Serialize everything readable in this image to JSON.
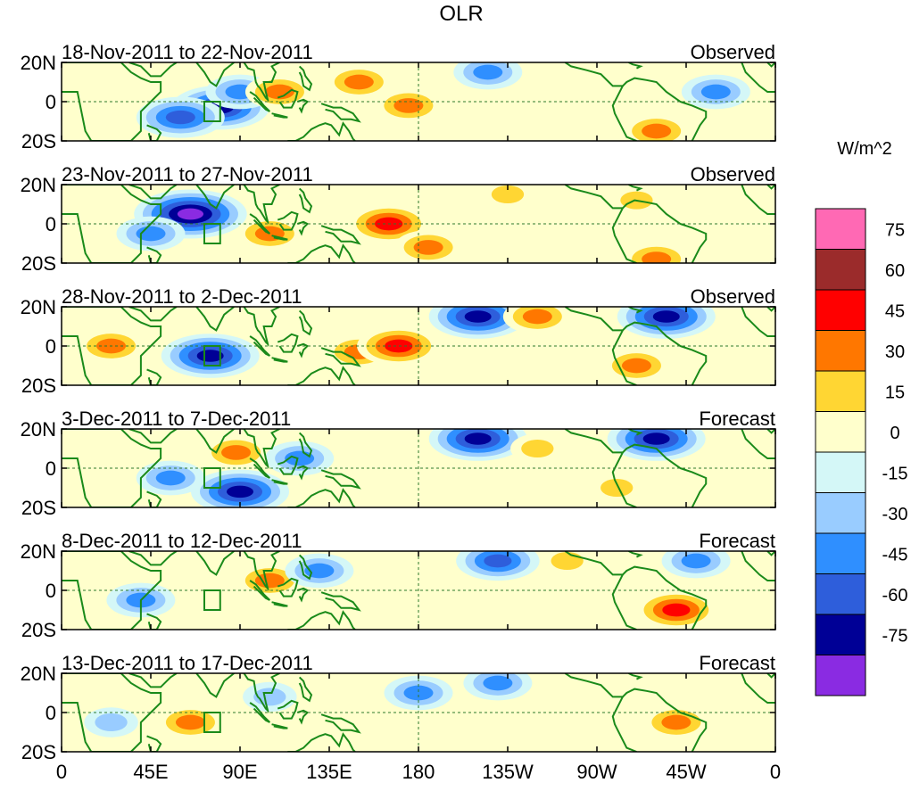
{
  "chart_data": {
    "type": "heatmap",
    "title": "OLR",
    "units_label": "W/m^2",
    "lat_tick_labels": [
      "20N",
      "0",
      "20S"
    ],
    "lon_tick_labels": [
      "0",
      "45E",
      "90E",
      "135E",
      "180",
      "135W",
      "90W",
      "45W",
      "0"
    ],
    "lon_range": [
      0,
      360
    ],
    "lat_range": [
      -20,
      20
    ],
    "colorbar": {
      "levels": [
        "75",
        "60",
        "45",
        "30",
        "15",
        "0",
        "-15",
        "-30",
        "-45",
        "-60",
        "-75"
      ],
      "colors": [
        "#ff69b4",
        "#9b2b2b",
        "#ff0000",
        "#ff7700",
        "#ffd633",
        "#ffffcc",
        "#d4f7f7",
        "#99ccff",
        "#2f8fff",
        "#2e5edb",
        "#000096",
        "#8a2be2"
      ]
    },
    "panels": [
      {
        "period": "18-Nov-2011 to 22-Nov-2011",
        "kind": "Observed",
        "anomalies": [
          {
            "lon": 80,
            "lat": -3,
            "value": -60
          },
          {
            "lon": 60,
            "lat": -8,
            "value": -50
          },
          {
            "lon": 90,
            "lat": 5,
            "value": -30
          },
          {
            "lon": 110,
            "lat": 5,
            "value": 30
          },
          {
            "lon": 150,
            "lat": 10,
            "value": 30
          },
          {
            "lon": 175,
            "lat": -2,
            "value": 30
          },
          {
            "lon": 215,
            "lat": 15,
            "value": -30
          },
          {
            "lon": 300,
            "lat": -15,
            "value": 30
          },
          {
            "lon": 330,
            "lat": 5,
            "value": -30
          }
        ]
      },
      {
        "period": "23-Nov-2011 to 27-Nov-2011",
        "kind": "Observed",
        "anomalies": [
          {
            "lon": 65,
            "lat": 5,
            "value": -75
          },
          {
            "lon": 45,
            "lat": -5,
            "value": -30
          },
          {
            "lon": 105,
            "lat": -5,
            "value": 30
          },
          {
            "lon": 165,
            "lat": 0,
            "value": 45
          },
          {
            "lon": 185,
            "lat": -12,
            "value": 30
          },
          {
            "lon": 225,
            "lat": 15,
            "value": 15
          },
          {
            "lon": 300,
            "lat": -18,
            "value": 30
          },
          {
            "lon": 290,
            "lat": 12,
            "value": 15
          }
        ]
      },
      {
        "period": "28-Nov-2011 to 2-Dec-2011",
        "kind": "Observed",
        "anomalies": [
          {
            "lon": 75,
            "lat": -5,
            "value": -60
          },
          {
            "lon": 25,
            "lat": 0,
            "value": 30
          },
          {
            "lon": 150,
            "lat": -3,
            "value": 30
          },
          {
            "lon": 170,
            "lat": 0,
            "value": 45
          },
          {
            "lon": 210,
            "lat": 15,
            "value": -60
          },
          {
            "lon": 240,
            "lat": 15,
            "value": 30
          },
          {
            "lon": 305,
            "lat": 15,
            "value": -60
          },
          {
            "lon": 290,
            "lat": -10,
            "value": 30
          }
        ]
      },
      {
        "period": "3-Dec-2011 to 7-Dec-2011",
        "kind": "Forecast",
        "anomalies": [
          {
            "lon": 88,
            "lat": 8,
            "value": 30
          },
          {
            "lon": 90,
            "lat": -12,
            "value": -60
          },
          {
            "lon": 55,
            "lat": -5,
            "value": -30
          },
          {
            "lon": 120,
            "lat": 5,
            "value": -30
          },
          {
            "lon": 210,
            "lat": 15,
            "value": -60
          },
          {
            "lon": 240,
            "lat": 10,
            "value": 15
          },
          {
            "lon": 300,
            "lat": 15,
            "value": -60
          },
          {
            "lon": 280,
            "lat": -10,
            "value": 15
          }
        ]
      },
      {
        "period": "8-Dec-2011 to 12-Dec-2011",
        "kind": "Forecast",
        "anomalies": [
          {
            "lon": 105,
            "lat": 5,
            "value": 30
          },
          {
            "lon": 130,
            "lat": 10,
            "value": -30
          },
          {
            "lon": 220,
            "lat": 15,
            "value": -45
          },
          {
            "lon": 255,
            "lat": 15,
            "value": 15
          },
          {
            "lon": 310,
            "lat": -10,
            "value": 45
          },
          {
            "lon": 320,
            "lat": 15,
            "value": -30
          },
          {
            "lon": 40,
            "lat": -5,
            "value": -30
          }
        ]
      },
      {
        "period": "13-Dec-2011 to 17-Dec-2011",
        "kind": "Forecast",
        "anomalies": [
          {
            "lon": 65,
            "lat": -5,
            "value": 30
          },
          {
            "lon": 105,
            "lat": 8,
            "value": -15
          },
          {
            "lon": 180,
            "lat": 10,
            "value": -30
          },
          {
            "lon": 220,
            "lat": 15,
            "value": -30
          },
          {
            "lon": 310,
            "lat": -5,
            "value": 30
          },
          {
            "lon": 25,
            "lat": -5,
            "value": -15
          }
        ]
      }
    ]
  }
}
